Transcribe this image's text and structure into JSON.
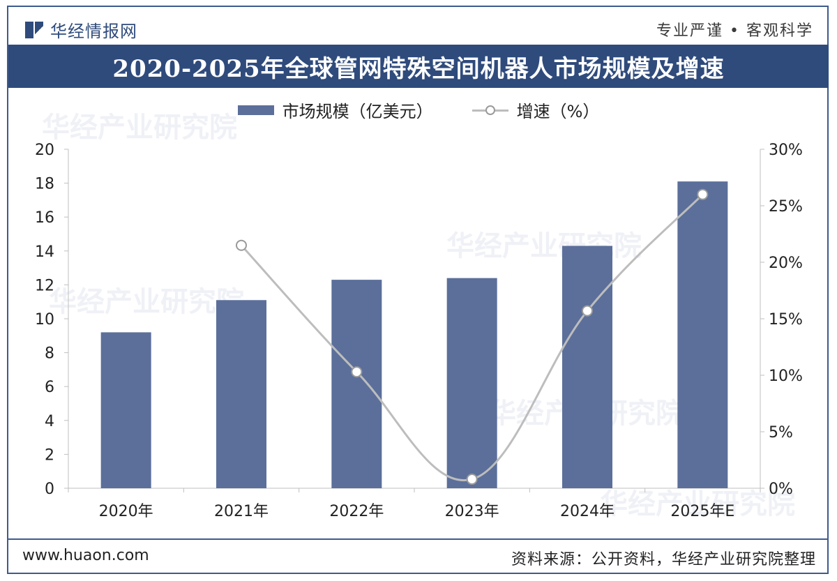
{
  "header": {
    "brand": "华经情报网",
    "slogan": "专业严谨 • 客观科学"
  },
  "title": "2020-2025年全球管网特殊空间机器人市场规模及增速",
  "watermark": {
    "text": "华经产业研究院",
    "url": "www.huaon.com"
  },
  "footer": {
    "website": "www.huaon.com",
    "source": "资料来源：公开资料，华经产业研究院整理"
  },
  "colors": {
    "bar": "#5b6f9a",
    "line": "#bdbdbd",
    "marker_border": "#9a9a9a",
    "title_bg": "#2f4b7c"
  },
  "chart_data": {
    "type": "bar",
    "categories": [
      "2020年",
      "2021年",
      "2022年",
      "2023年",
      "2024年",
      "2025年E"
    ],
    "series": [
      {
        "name": "市场规模（亿美元）",
        "type": "bar",
        "axis": "left",
        "values": [
          9.2,
          11.1,
          12.3,
          12.4,
          14.3,
          18.1
        ]
      },
      {
        "name": "增速（%）",
        "type": "line",
        "axis": "right",
        "values": [
          null,
          21.5,
          10.3,
          0.8,
          15.7,
          26.0
        ]
      }
    ],
    "ylim_left": [
      0,
      20
    ],
    "yticks_left": [
      "0",
      "2",
      "4",
      "6",
      "8",
      "10",
      "12",
      "14",
      "16",
      "18",
      "20"
    ],
    "ylim_right": [
      0,
      30
    ],
    "yticks_right": [
      "0%",
      "5%",
      "10%",
      "15%",
      "20%",
      "25%",
      "30%"
    ],
    "legend_position": "top-center",
    "grid": false
  }
}
